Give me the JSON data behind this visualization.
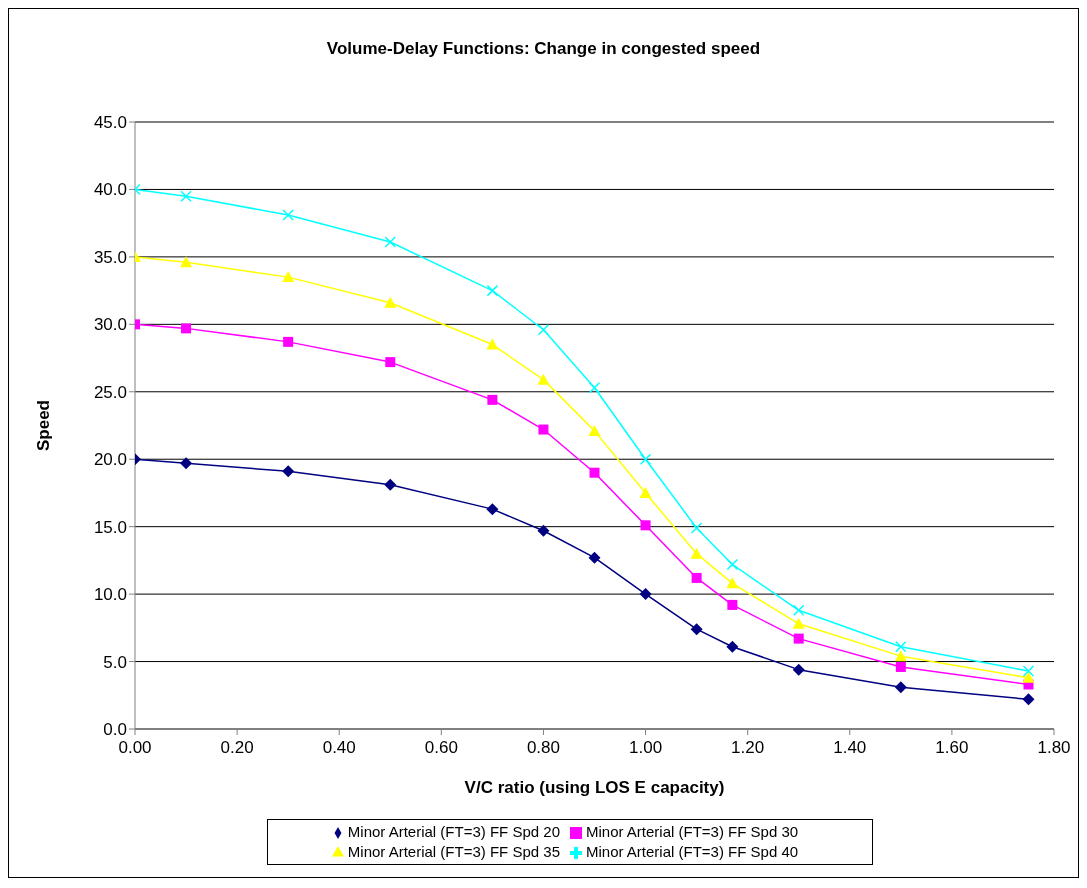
{
  "chart_data": {
    "type": "line",
    "title": "Volume-Delay Functions: Change in congested speed",
    "xlabel": "V/C ratio (using LOS E capacity)",
    "ylabel": "Speed",
    "x": [
      0,
      0.1,
      0.3,
      0.5,
      0.7,
      0.8,
      0.9,
      1.0,
      1.1,
      1.17,
      1.3,
      1.5,
      1.75
    ],
    "series": [
      {
        "name": "Minor Arterial (FT=3) FF Spd 20",
        "color": "#000080",
        "marker": "diamond",
        "values": [
          20,
          19.7,
          19.1,
          18.1,
          16.3,
          14.7,
          12.7,
          10.0,
          7.4,
          6.1,
          4.4,
          3.1,
          2.2
        ]
      },
      {
        "name": "Minor Arterial (FT=3) FF Spd 30",
        "color": "#ff00ff",
        "marker": "square",
        "values": [
          30,
          29.7,
          28.7,
          27.2,
          24.4,
          22.2,
          19.0,
          15.1,
          11.2,
          9.2,
          6.7,
          4.6,
          3.3
        ]
      },
      {
        "name": "Minor Arterial (FT=3) FF Spd 35",
        "color": "#ffff00",
        "marker": "triangle",
        "values": [
          35,
          34.6,
          33.5,
          31.6,
          28.5,
          25.9,
          22.1,
          17.5,
          13.0,
          10.8,
          7.8,
          5.4,
          3.8
        ]
      },
      {
        "name": "Minor Arterial (FT=3) FF Spd 40",
        "color": "#00ffff",
        "marker": "cross",
        "values": [
          40,
          39.5,
          38.1,
          36.1,
          32.5,
          29.6,
          25.3,
          20.0,
          14.9,
          12.2,
          8.8,
          6.1,
          4.3
        ]
      }
    ],
    "xlim": [
      0,
      1.8
    ],
    "xticks": [
      {
        "value": 0,
        "label": "0.00"
      },
      {
        "value": 0.2,
        "label": "0.20"
      },
      {
        "value": 0.4,
        "label": "0.40"
      },
      {
        "value": 0.6,
        "label": "0.60"
      },
      {
        "value": 0.8,
        "label": "0.80"
      },
      {
        "value": 1.0,
        "label": "1.00"
      },
      {
        "value": 1.2,
        "label": "1.20"
      },
      {
        "value": 1.4,
        "label": "1.40"
      },
      {
        "value": 1.6,
        "label": "1.60"
      },
      {
        "value": 1.8,
        "label": "1.80"
      }
    ],
    "ylim": [
      0,
      45
    ],
    "yticks": [
      {
        "value": 0,
        "label": "0.0"
      },
      {
        "value": 5,
        "label": "5.0"
      },
      {
        "value": 10,
        "label": "10.0"
      },
      {
        "value": 15,
        "label": "15.0"
      },
      {
        "value": 20,
        "label": "20.0"
      },
      {
        "value": 25,
        "label": "25.0"
      },
      {
        "value": 30,
        "label": "30.0"
      },
      {
        "value": 35,
        "label": "35.0"
      },
      {
        "value": 40,
        "label": "40.0"
      },
      {
        "value": 45,
        "label": "45.0"
      }
    ],
    "grid": "y",
    "legend": "bottom",
    "line_style": "solid"
  }
}
